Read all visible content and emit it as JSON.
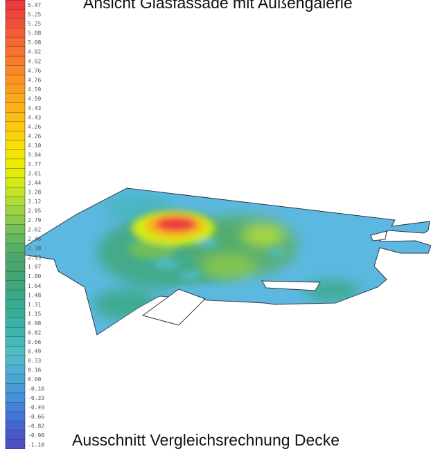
{
  "titles": {
    "top": "Ansicht Glasfassade mit Außengalerie",
    "bottom": "Ausschnitt Vergleichsrechnung Decke"
  },
  "legend": {
    "labels": [
      "5.47",
      "5.25",
      "5.25",
      "5.08",
      "5.08",
      "4.92",
      "4.92",
      "4.76",
      "4.76",
      "4.59",
      "4.59",
      "4.43",
      "4.43",
      "4.26",
      "4.26",
      "4.10",
      "3.94",
      "3.77",
      "3.61",
      "3.44",
      "3.28",
      "3.12",
      "2.95",
      "2.79",
      "2.62",
      "2.46",
      "2.30",
      "2.13",
      "1.97",
      "1.80",
      "1.64",
      "1.48",
      "1.31",
      "1.15",
      "0.98",
      "0.82",
      "0.66",
      "0.49",
      "0.33",
      "0.16",
      "0.00",
      "-0.16",
      "-0.33",
      "-0.49",
      "-0.66",
      "-0.82",
      "-0.98",
      "-1.10"
    ],
    "colors": [
      "#ee3a3f",
      "#f0453d",
      "#f2503b",
      "#f45c37",
      "#f66733",
      "#f8712f",
      "#f97c2b",
      "#fa8727",
      "#fb9223",
      "#fc9d1f",
      "#fca81b",
      "#fcb317",
      "#fcbe13",
      "#fcc90f",
      "#fbd30b",
      "#f9de07",
      "#f4e600",
      "#ecec00",
      "#e1ed08",
      "#d2ea14",
      "#c2e424",
      "#b0dc34",
      "#9cd342",
      "#88c94e",
      "#76bf58",
      "#66b65f",
      "#58ae66",
      "#4ea86b",
      "#48a66f",
      "#44a674",
      "#3fa77d",
      "#3aa987",
      "#38ab91",
      "#38ae9a",
      "#3ab1a5",
      "#3eb4af",
      "#45b8b9",
      "#4dbcc3",
      "#4fb8cc",
      "#4db0d2",
      "#4aa6d6",
      "#479cd8",
      "#4590da",
      "#4482da",
      "#4474d8",
      "#4566d2",
      "#4959ca",
      "#4d4fc2"
    ]
  },
  "colors": {
    "slab_base": "#5cb8e0",
    "hotspot": "#ee3a3f",
    "opening": "#ffffff"
  }
}
